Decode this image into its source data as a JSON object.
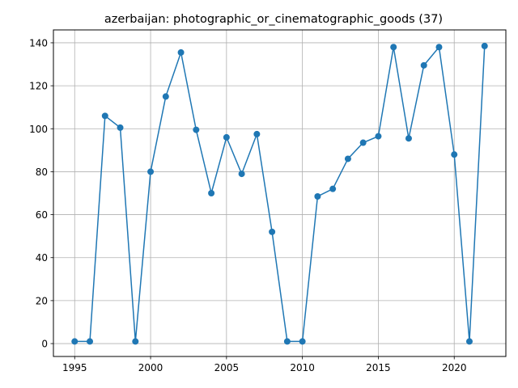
{
  "chart_data": {
    "type": "line",
    "title": "azerbaijan: photographic_or_cinematographic_goods (37)",
    "xlabel": "",
    "ylabel": "",
    "xlim": [
      1993.6,
      2023.4
    ],
    "ylim": [
      -6,
      146
    ],
    "x_ticks": [
      1995,
      2000,
      2005,
      2010,
      2015,
      2020
    ],
    "y_ticks": [
      0,
      20,
      40,
      60,
      80,
      100,
      120,
      140
    ],
    "grid": true,
    "color": "#1f77b4",
    "series": [
      {
        "x": [
          1995,
          1996,
          1997,
          1998,
          1999,
          2000,
          2001,
          2002,
          2003,
          2004,
          2005,
          2006,
          2007,
          2008,
          2009,
          2010,
          2011,
          2012,
          2013,
          2014,
          2015,
          2016,
          2017,
          2018,
          2019,
          2020,
          2021,
          2022
        ],
        "y": [
          1,
          1,
          106,
          100.5,
          1,
          80,
          115,
          135.5,
          99.5,
          70,
          96,
          79,
          97.5,
          52,
          1,
          1,
          68.5,
          72,
          86,
          93.5,
          96.5,
          138,
          95.5,
          129.5,
          138,
          88,
          1,
          138.5
        ]
      }
    ]
  }
}
